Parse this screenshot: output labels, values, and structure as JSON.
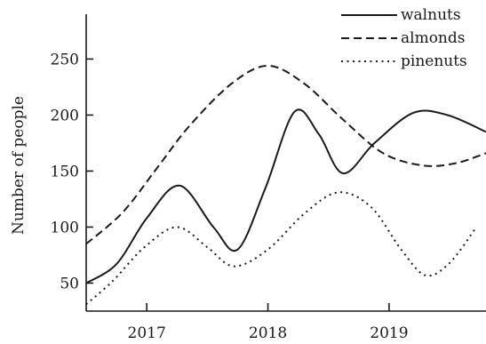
{
  "chart_data": {
    "type": "line",
    "ylabel": "Number of people",
    "xlim": [
      2016.5,
      2019.8
    ],
    "ylim": [
      25,
      290
    ],
    "x_ticks": [
      {
        "value": 2017,
        "label": "2017"
      },
      {
        "value": 2018,
        "label": "2018"
      },
      {
        "value": 2019,
        "label": "2019"
      }
    ],
    "y_ticks": [
      {
        "value": 50,
        "label": "50"
      },
      {
        "value": 100,
        "label": "100"
      },
      {
        "value": 150,
        "label": "150"
      },
      {
        "value": 200,
        "label": "200"
      },
      {
        "value": 250,
        "label": "250"
      }
    ],
    "legend_position": "top-right",
    "series": [
      {
        "name": "walnuts",
        "style": "solid",
        "color": "#1a1a1a",
        "points": [
          [
            2016.5,
            50
          ],
          [
            2016.75,
            67
          ],
          [
            2017.0,
            108
          ],
          [
            2017.27,
            137
          ],
          [
            2017.55,
            100
          ],
          [
            2017.75,
            80
          ],
          [
            2017.98,
            135
          ],
          [
            2018.22,
            203
          ],
          [
            2018.42,
            183
          ],
          [
            2018.62,
            148
          ],
          [
            2018.88,
            175
          ],
          [
            2019.2,
            202
          ],
          [
            2019.48,
            200
          ],
          [
            2019.8,
            185
          ]
        ]
      },
      {
        "name": "almonds",
        "style": "dashed",
        "color": "#1a1a1a",
        "points": [
          [
            2016.5,
            85
          ],
          [
            2016.8,
            113
          ],
          [
            2017.08,
            152
          ],
          [
            2017.35,
            190
          ],
          [
            2017.7,
            228
          ],
          [
            2018.0,
            244
          ],
          [
            2018.3,
            228
          ],
          [
            2018.62,
            196
          ],
          [
            2018.95,
            166
          ],
          [
            2019.28,
            155
          ],
          [
            2019.55,
            157
          ],
          [
            2019.8,
            166
          ]
        ]
      },
      {
        "name": "pinenuts",
        "style": "dotted",
        "color": "#1a1a1a",
        "points": [
          [
            2016.5,
            31
          ],
          [
            2016.72,
            52
          ],
          [
            2016.98,
            82
          ],
          [
            2017.25,
            100
          ],
          [
            2017.5,
            82
          ],
          [
            2017.72,
            65
          ],
          [
            2018.0,
            80
          ],
          [
            2018.3,
            112
          ],
          [
            2018.58,
            131
          ],
          [
            2018.85,
            118
          ],
          [
            2019.1,
            80
          ],
          [
            2019.3,
            57
          ],
          [
            2019.5,
            68
          ],
          [
            2019.72,
            100
          ]
        ]
      }
    ]
  }
}
